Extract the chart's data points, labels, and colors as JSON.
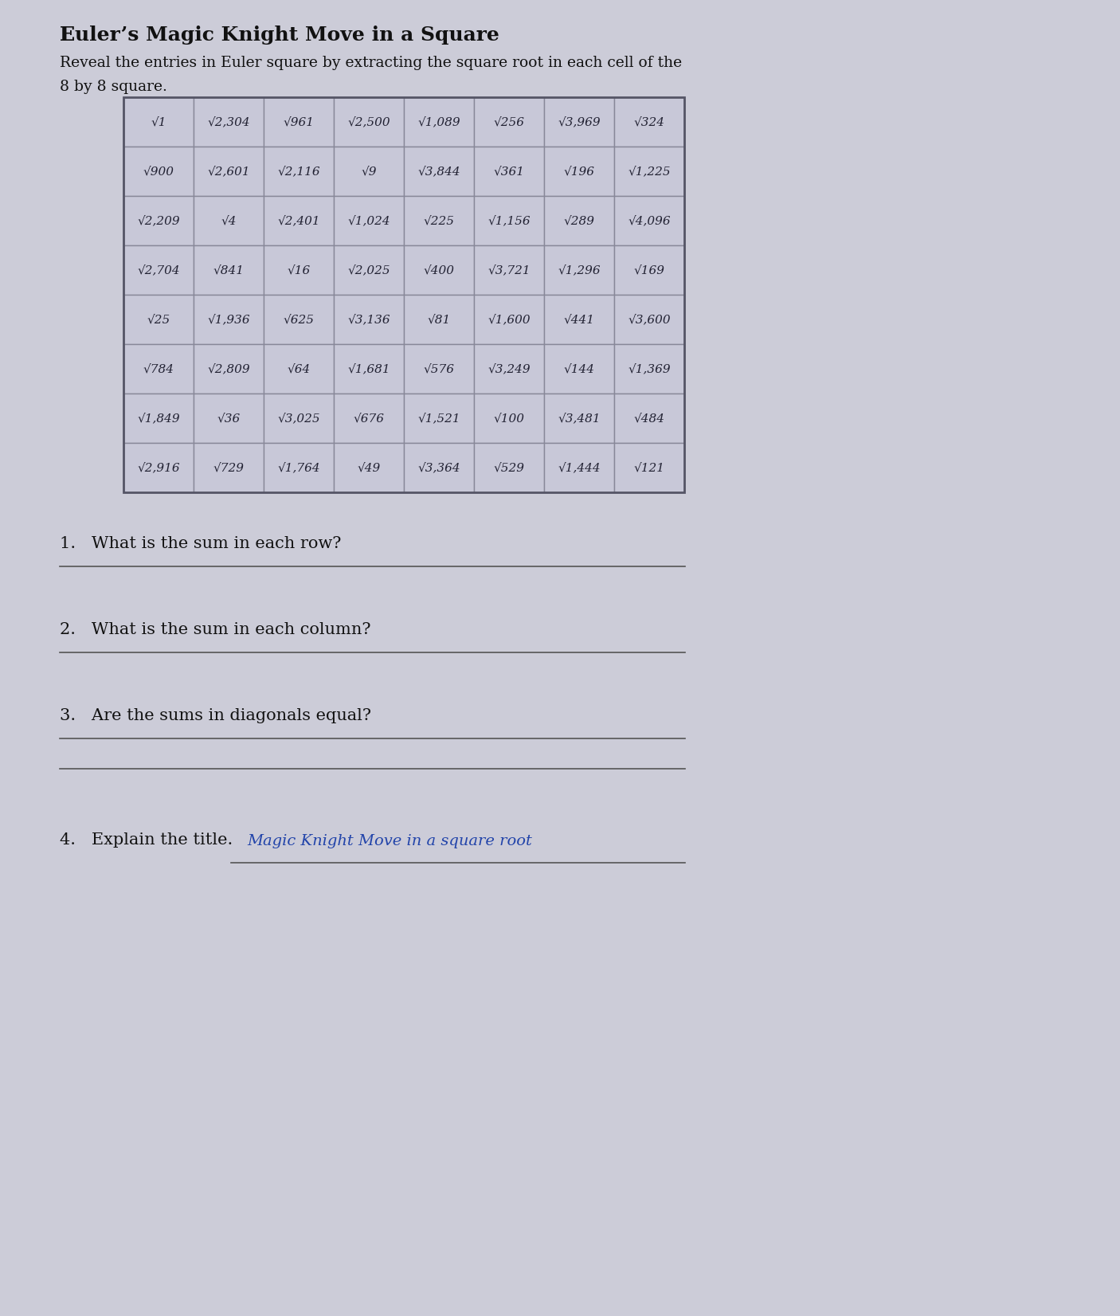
{
  "title_line1": "Euler’s Magic Knight Move in a Square",
  "subtitle_line1": "Reveal the entries in Euler square by extracting the square root in each cell of the",
  "subtitle_line2": "8 by 8 square.",
  "table": [
    [
      1,
      2304,
      961,
      2500,
      1089,
      256,
      3969,
      324
    ],
    [
      900,
      2601,
      2116,
      9,
      3844,
      361,
      196,
      1225
    ],
    [
      2209,
      4,
      2401,
      1024,
      225,
      1156,
      289,
      4096
    ],
    [
      2704,
      841,
      16,
      2025,
      400,
      3721,
      1296,
      169
    ],
    [
      25,
      1936,
      625,
      3136,
      81,
      1600,
      441,
      3600
    ],
    [
      784,
      2809,
      64,
      1681,
      576,
      3249,
      144,
      1369
    ],
    [
      1849,
      36,
      3025,
      676,
      1521,
      100,
      3481,
      484
    ],
    [
      2916,
      729,
      1764,
      49,
      3364,
      529,
      1444,
      121
    ]
  ],
  "q1": "1.   What is the sum in each row?",
  "q2": "2.   What is the sum in each column?",
  "q3": "3.   Are the sums in diagonals equal?",
  "q4": "4.   Explain the title.",
  "answer4": "Magic Knight Move in a square root",
  "bg_color": "#ccccd8",
  "cell_bg": "#c8c8d8",
  "border_color": "#888899",
  "text_color": "#111111",
  "answer_color": "#2244aa"
}
